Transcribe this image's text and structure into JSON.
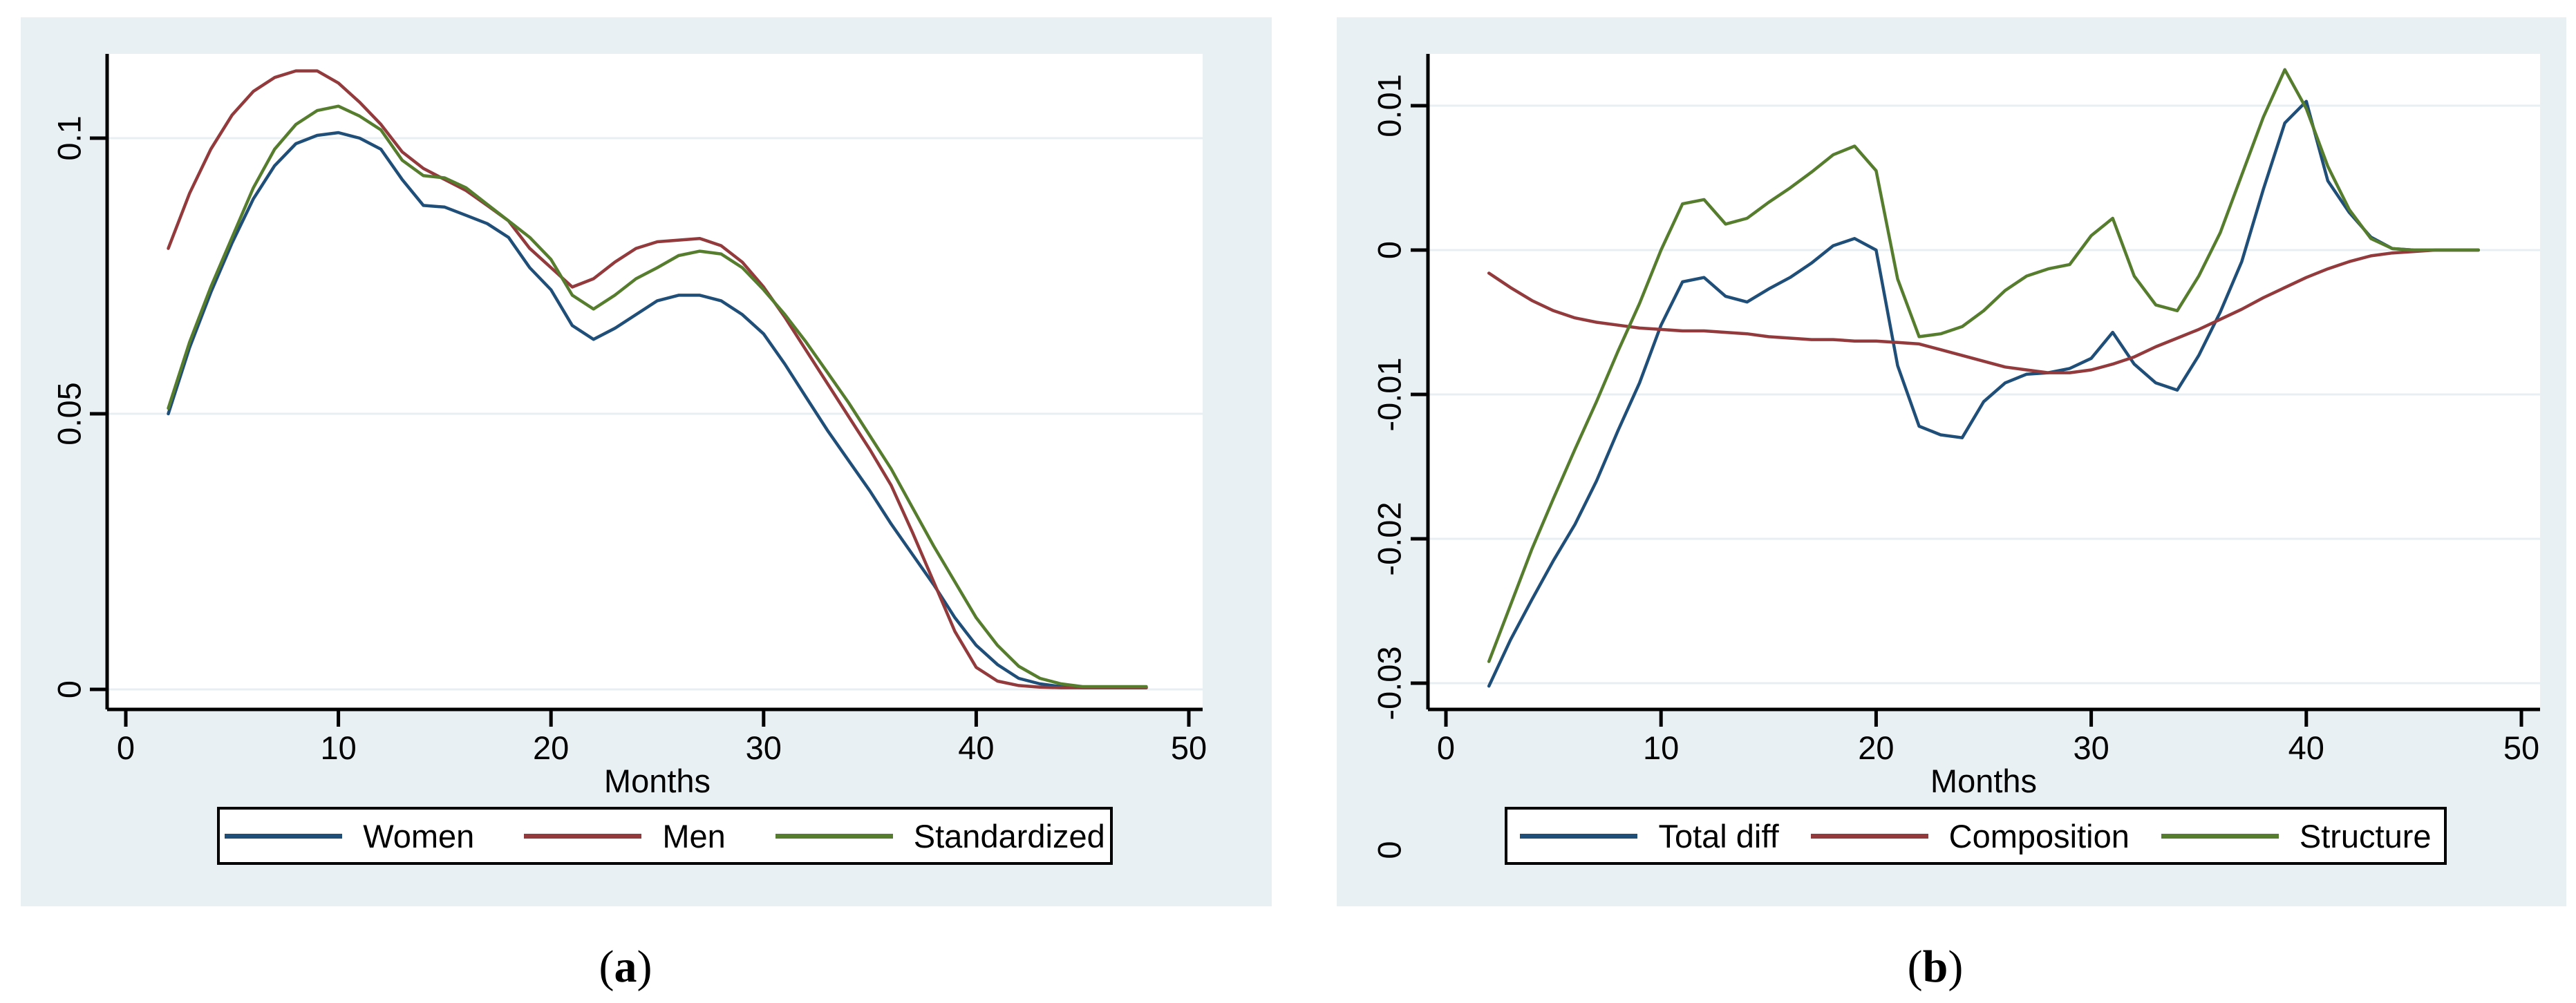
{
  "figure": {
    "captions": [
      {
        "open": "(",
        "letter": "a",
        "close": ")"
      },
      {
        "open": "(",
        "letter": "b",
        "close": ")"
      }
    ]
  },
  "colors": {
    "panel_background": "#e9f0f3",
    "plot_background": "#ffffff",
    "gridline": "#e7eff3",
    "axis": "#000000",
    "navy": "#1f4e79",
    "maroon": "#923a3c",
    "green": "#567d2e"
  },
  "chart_data": [
    {
      "id": "a",
      "type": "line",
      "title": "",
      "xlabel": "Months",
      "ylabel": "",
      "grid": true,
      "legend_position": "bottom",
      "x": {
        "start": 2,
        "end": 48,
        "step": 1
      },
      "xlim": [
        -0.9,
        50.7
      ],
      "ylim": [
        -0.0036,
        0.1153
      ],
      "xticks": [
        "0",
        "10",
        "20",
        "30",
        "40",
        "50"
      ],
      "xtick_values": [
        0,
        10,
        20,
        30,
        40,
        50
      ],
      "yticks": [
        {
          "value": 0,
          "label": "0"
        },
        {
          "value": 0.05,
          "label": "0.05"
        },
        {
          "value": 0.1,
          "label": "0.1"
        }
      ],
      "series": [
        {
          "name": "Women",
          "color_key": "navy",
          "values": [
            0.05,
            0.062,
            0.072,
            0.081,
            0.089,
            0.095,
            0.099,
            0.1005,
            0.101,
            0.1,
            0.098,
            0.0925,
            0.0878,
            0.0875,
            0.086,
            0.0845,
            0.082,
            0.0765,
            0.0725,
            0.066,
            0.0635,
            0.0655,
            0.068,
            0.0705,
            0.0715,
            0.0715,
            0.0705,
            0.068,
            0.0645,
            0.059,
            0.053,
            0.047,
            0.0415,
            0.036,
            0.03,
            0.0245,
            0.019,
            0.013,
            0.008,
            0.0045,
            0.002,
            0.001,
            0.0005,
            0.0003,
            0.0003,
            0.0003,
            0.0003
          ]
        },
        {
          "name": "Men",
          "color_key": "maroon",
          "values": [
            0.08,
            0.09,
            0.098,
            0.1042,
            0.1085,
            0.111,
            0.1122,
            0.1122,
            0.11,
            0.1065,
            0.1025,
            0.0975,
            0.0945,
            0.0925,
            0.0905,
            0.0878,
            0.085,
            0.08,
            0.0765,
            0.073,
            0.0745,
            0.0775,
            0.08,
            0.0812,
            0.0815,
            0.0818,
            0.0805,
            0.0775,
            0.073,
            0.0675,
            0.0615,
            0.0555,
            0.0495,
            0.0435,
            0.037,
            0.0285,
            0.0195,
            0.0105,
            0.004,
            0.0015,
            0.0007,
            0.0004,
            0.0003,
            0.0003,
            0.0003,
            0.0003,
            0.0003
          ]
        },
        {
          "name": "Standardized",
          "color_key": "green",
          "values": [
            0.051,
            0.063,
            0.073,
            0.082,
            0.091,
            0.098,
            0.1025,
            0.105,
            0.1058,
            0.104,
            0.1015,
            0.096,
            0.0932,
            0.0928,
            0.091,
            0.088,
            0.085,
            0.082,
            0.078,
            0.0715,
            0.069,
            0.0715,
            0.0745,
            0.0765,
            0.0787,
            0.0795,
            0.079,
            0.0765,
            0.0725,
            0.068,
            0.063,
            0.0575,
            0.052,
            0.046,
            0.04,
            0.033,
            0.026,
            0.0195,
            0.013,
            0.008,
            0.0042,
            0.002,
            0.001,
            0.0005,
            0.0005,
            0.0005,
            0.0005
          ]
        }
      ]
    },
    {
      "id": "b",
      "type": "line",
      "title": "",
      "xlabel": "Months",
      "ylabel": "",
      "grid": true,
      "legend_position": "bottom",
      "stray_label": "0",
      "x": {
        "start": 2,
        "end": 48,
        "step": 1
      },
      "xlim": [
        -0.85,
        50.9
      ],
      "ylim": [
        -0.0318,
        0.0136
      ],
      "xticks": [
        "0",
        "10",
        "20",
        "30",
        "40",
        "50"
      ],
      "xtick_values": [
        0,
        10,
        20,
        30,
        40,
        50
      ],
      "yticks": [
        {
          "value": 0.01,
          "label": "0.01"
        },
        {
          "value": 0,
          "label": "0"
        },
        {
          "value": -0.01,
          "label": "-0.01"
        },
        {
          "value": -0.02,
          "label": "-0.02"
        },
        {
          "value": -0.03,
          "label": "-0.03"
        }
      ],
      "series": [
        {
          "name": "Total diff",
          "color_key": "navy",
          "values": [
            -0.0302,
            -0.027,
            -0.0242,
            -0.0215,
            -0.019,
            -0.016,
            -0.0125,
            -0.0092,
            -0.0052,
            -0.0022,
            -0.0019,
            -0.0032,
            -0.0036,
            -0.0027,
            -0.0019,
            -0.0009,
            0.0003,
            0.0008,
            0.0,
            -0.008,
            -0.0122,
            -0.0128,
            -0.013,
            -0.0105,
            -0.0092,
            -0.0086,
            -0.0085,
            -0.0082,
            -0.0075,
            -0.0057,
            -0.0079,
            -0.0092,
            -0.0097,
            -0.0073,
            -0.0043,
            -0.0008,
            0.0042,
            0.0088,
            0.0103,
            0.0048,
            0.0026,
            0.0009,
            0.0001,
            0.0,
            0.0,
            0.0,
            0.0
          ]
        },
        {
          "name": "Composition",
          "color_key": "maroon",
          "values": [
            -0.0016,
            -0.0026,
            -0.0035,
            -0.0042,
            -0.0047,
            -0.005,
            -0.0052,
            -0.0054,
            -0.0055,
            -0.0056,
            -0.0056,
            -0.0057,
            -0.0058,
            -0.006,
            -0.0061,
            -0.0062,
            -0.0062,
            -0.0063,
            -0.0063,
            -0.0064,
            -0.0065,
            -0.0069,
            -0.0073,
            -0.0077,
            -0.0081,
            -0.0083,
            -0.0085,
            -0.0085,
            -0.0083,
            -0.0079,
            -0.0074,
            -0.0067,
            -0.0061,
            -0.0055,
            -0.0048,
            -0.0041,
            -0.0033,
            -0.0026,
            -0.0019,
            -0.0013,
            -0.0008,
            -0.0004,
            -0.0002,
            -0.0001,
            0.0,
            0.0,
            0.0
          ]
        },
        {
          "name": "Structure",
          "color_key": "green",
          "values": [
            -0.0285,
            -0.0246,
            -0.0207,
            -0.0172,
            -0.0138,
            -0.0105,
            -0.007,
            -0.0037,
            0.0,
            0.0032,
            0.0035,
            0.0018,
            0.0022,
            0.0033,
            0.0043,
            0.0054,
            0.0066,
            0.0072,
            0.0055,
            -0.002,
            -0.006,
            -0.0058,
            -0.0053,
            -0.0042,
            -0.0028,
            -0.0018,
            -0.0013,
            -0.001,
            0.001,
            0.0022,
            -0.0018,
            -0.0038,
            -0.0042,
            -0.0018,
            0.0012,
            0.0052,
            0.0092,
            0.0125,
            0.0098,
            0.0058,
            0.0028,
            0.0008,
            0.0001,
            0.0,
            0.0,
            0.0,
            0.0
          ]
        }
      ]
    }
  ]
}
